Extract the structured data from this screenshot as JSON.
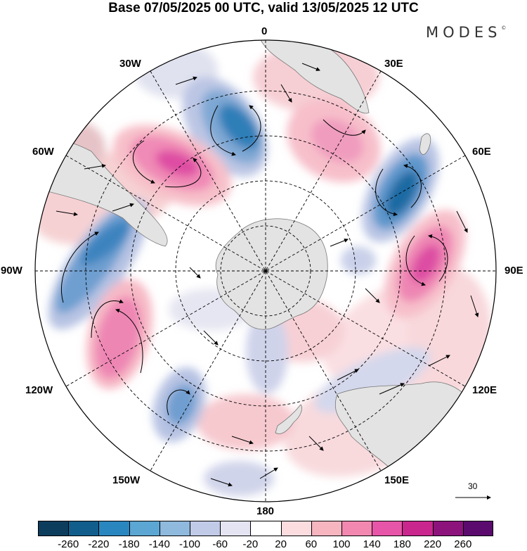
{
  "title": "Base 07/05/2025 00 UTC, valid 13/05/2025 12 UTC",
  "brand": "MODES",
  "brand_mark": "©",
  "longitude_labels": {
    "lon_0": "0",
    "lon_30e": "30E",
    "lon_60e": "60E",
    "lon_90e": "90E",
    "lon_120e": "120E",
    "lon_150e": "150E",
    "lon_180": "180",
    "lon_150w": "150W",
    "lon_120w": "120W",
    "lon_90w": "90W",
    "lon_60w": "60W",
    "lon_30w": "30W"
  },
  "reference_vector": {
    "label": "30"
  },
  "colorbar": {
    "ticks": [
      "-260",
      "-220",
      "-180",
      "-140",
      "-100",
      "-60",
      "-20",
      "20",
      "60",
      "100",
      "140",
      "180",
      "220",
      "260"
    ],
    "colors": [
      "#0c3d5c",
      "#115e8c",
      "#2a86bf",
      "#5ba6d2",
      "#8fb9dd",
      "#c1cae6",
      "#e4e4f2",
      "#ffffff",
      "#fbdde0",
      "#f7b5c0",
      "#f288b0",
      "#e755a8",
      "#c9268e",
      "#8c137c",
      "#5b0a6e"
    ]
  },
  "colors": {
    "land": "#e3e3e3",
    "coast": "#777777",
    "grid": "#000000"
  }
}
